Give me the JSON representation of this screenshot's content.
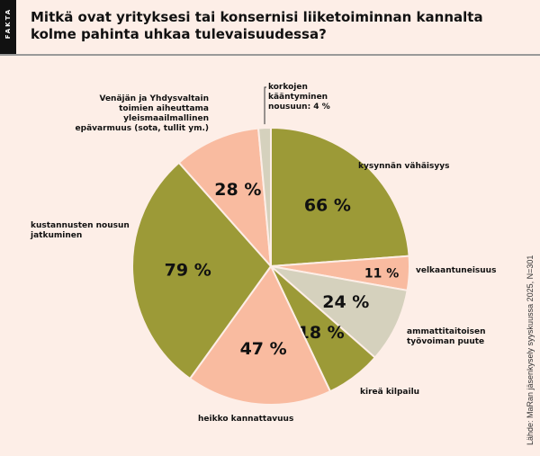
{
  "header": {
    "tag": "FAKTA",
    "title": "Mitkä ovat yrityksesi tai konsernisi liiketoiminnan kannalta kolme pahinta uhkaa tulevaisuudessa?"
  },
  "source": "Lähde: MaRan jäsenkysely syyskuussa 2025, N=301",
  "colors": {
    "olive": "#9c9a37",
    "peach": "#f9bba0",
    "beige": "#d5d1bd",
    "background": "#fdeee7"
  },
  "chart_data": {
    "type": "pie",
    "title": "Mitkä ovat yrityksesi tai konsernisi liiketoiminnan kannalta kolme pahinta uhkaa tulevaisuudessa?",
    "slices": [
      {
        "label": "kysynnän vähäisyys",
        "value": 66,
        "value_label": "66 %",
        "color": "#9c9a37"
      },
      {
        "label": "velkaantuneisuus",
        "value": 11,
        "value_label": "11 %",
        "color": "#f9bba0"
      },
      {
        "label": "ammattitaitoisen työvoiman puute",
        "value": 24,
        "value_label": "24 %",
        "color": "#d5d1bd"
      },
      {
        "label": "kireä kilpailu",
        "value": 18,
        "value_label": "18 %",
        "color": "#9c9a37"
      },
      {
        "label": "heikko kannattavuus",
        "value": 47,
        "value_label": "47 %",
        "color": "#f9bba0"
      },
      {
        "label": "kustannusten nousun jatkuminen",
        "value": 79,
        "value_label": "79 %",
        "color": "#9c9a37"
      },
      {
        "label": "Venäjän ja Yhdysvaltain toimien aiheuttama yleismaailmallinen epävarmuus (sota, tullit ym.)",
        "value": 28,
        "value_label": "28 %",
        "color": "#f9bba0"
      },
      {
        "label": "korkojen kääntyminen nousuun: 4 %",
        "value": 4,
        "value_label": "",
        "color": "#d5d1bd"
      }
    ]
  }
}
